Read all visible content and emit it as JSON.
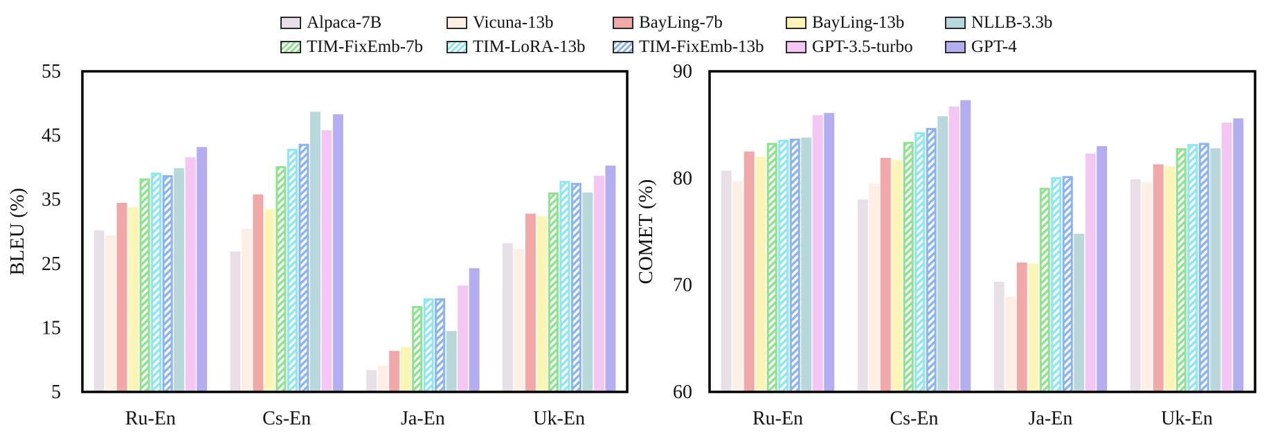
{
  "legend": [
    "Alpaca-7B",
    "Vicuna-13b",
    "BayLing-7b",
    "BayLing-13b",
    "NLLB-3.3b",
    "TIM-FixEmb-7b",
    "TIM-LoRA-13b",
    "TIM-FixEmb-13b",
    "GPT-3.5-turbo",
    "GPT-4"
  ],
  "series_style": [
    {
      "color": "#e8e0e6",
      "pattern": "solid"
    },
    {
      "color": "#fdeee6",
      "pattern": "solid"
    },
    {
      "color": "#f0a8a8",
      "pattern": "solid"
    },
    {
      "color": "#fbf6b8",
      "pattern": "solid"
    },
    {
      "color": "#b8d8dc",
      "pattern": "solid"
    },
    {
      "color": "#8fe28f",
      "pattern": "hatch"
    },
    {
      "color": "#8fe6f0",
      "pattern": "hatch"
    },
    {
      "color": "#8cb4ee",
      "pattern": "hatch"
    },
    {
      "color": "#f4c6f4",
      "pattern": "solid"
    },
    {
      "color": "#b4aef0",
      "pattern": "solid"
    }
  ],
  "chart_data": [
    {
      "type": "bar",
      "ylabel": "BLEU (%)",
      "ylim": [
        5,
        55
      ],
      "yticks": [
        5,
        15,
        25,
        35,
        45,
        55
      ],
      "categories": [
        "Ru-En",
        "Cs-En",
        "Ja-En",
        "Uk-En"
      ],
      "series": [
        {
          "name": "Alpaca-7B",
          "values": [
            30.2,
            26.9,
            8.4,
            28.2
          ]
        },
        {
          "name": "Vicuna-13b",
          "values": [
            29.4,
            30.4,
            9.1,
            27.3
          ]
        },
        {
          "name": "BayLing-7b",
          "values": [
            34.5,
            35.8,
            11.4,
            32.8
          ]
        },
        {
          "name": "BayLing-13b",
          "values": [
            33.8,
            33.5,
            12.0,
            32.4
          ]
        },
        {
          "name": "TIM-FixEmb-7b",
          "values": [
            38.3,
            40.2,
            18.4,
            36.1
          ]
        },
        {
          "name": "TIM-LoRA-13b",
          "values": [
            39.2,
            42.9,
            19.6,
            37.9
          ]
        },
        {
          "name": "TIM-FixEmb-13b",
          "values": [
            38.8,
            43.7,
            19.6,
            37.6
          ]
        },
        {
          "name": "NLLB-3.3b",
          "values": [
            39.9,
            48.7,
            14.5,
            36.1
          ]
        },
        {
          "name": "GPT-3.5-turbo",
          "values": [
            41.6,
            45.8,
            21.6,
            38.7
          ]
        },
        {
          "name": "GPT-4",
          "values": [
            43.2,
            48.3,
            24.3,
            40.3
          ]
        }
      ],
      "legend": "top",
      "grid": false
    },
    {
      "type": "bar",
      "ylabel": "COMET (%)",
      "ylim": [
        60,
        90
      ],
      "yticks": [
        60,
        70,
        80,
        90
      ],
      "categories": [
        "Ru-En",
        "Cs-En",
        "Ja-En",
        "Uk-En"
      ],
      "series": [
        {
          "name": "Alpaca-7B",
          "values": [
            80.7,
            78.0,
            70.3,
            79.9
          ]
        },
        {
          "name": "Vicuna-13b",
          "values": [
            79.7,
            79.5,
            68.9,
            79.6
          ]
        },
        {
          "name": "BayLing-7b",
          "values": [
            82.5,
            81.9,
            72.1,
            81.3
          ]
        },
        {
          "name": "BayLing-13b",
          "values": [
            82.0,
            81.7,
            72.0,
            81.1
          ]
        },
        {
          "name": "TIM-FixEmb-7b",
          "values": [
            83.3,
            83.4,
            79.1,
            82.8
          ]
        },
        {
          "name": "TIM-LoRA-13b",
          "values": [
            83.6,
            84.3,
            80.1,
            83.2
          ]
        },
        {
          "name": "TIM-FixEmb-13b",
          "values": [
            83.7,
            84.7,
            80.2,
            83.3
          ]
        },
        {
          "name": "NLLB-3.3b",
          "values": [
            83.8,
            85.8,
            74.8,
            82.8
          ]
        },
        {
          "name": "GPT-3.5-turbo",
          "values": [
            85.9,
            86.7,
            82.3,
            85.2
          ]
        },
        {
          "name": "GPT-4",
          "values": [
            86.1,
            87.3,
            83.0,
            85.6
          ]
        }
      ],
      "legend": "top",
      "grid": false
    }
  ]
}
